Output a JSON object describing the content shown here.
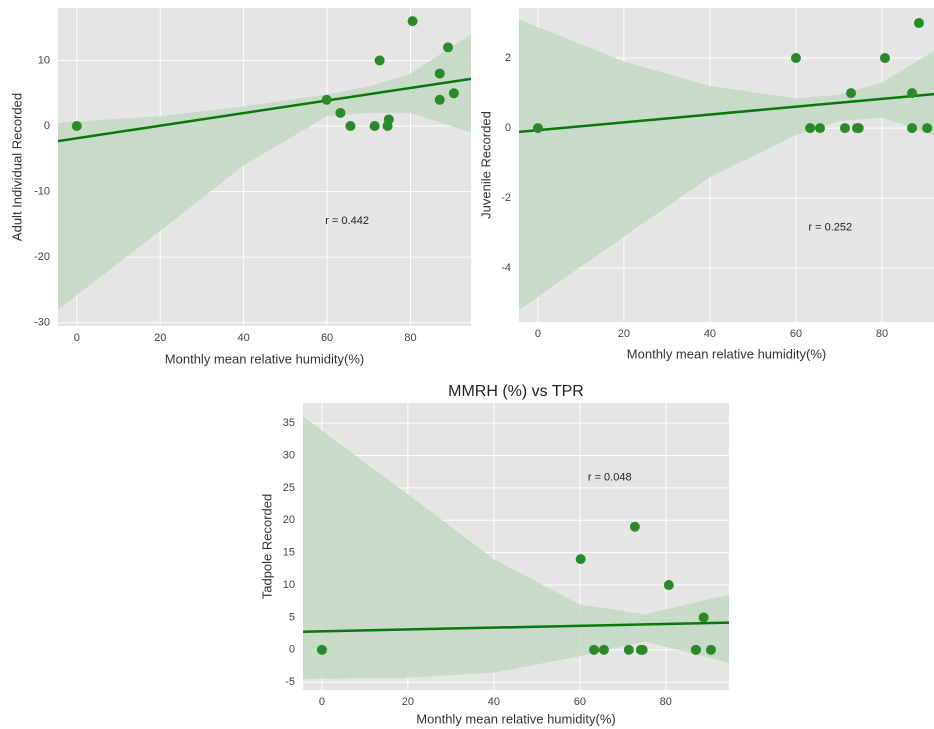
{
  "chart_data": [
    {
      "type": "scatter",
      "xlabel": "Monthly mean relative humidity(%)",
      "ylabel": "Adult Individual Recorded",
      "x": [
        0,
        59.9,
        63.2,
        65.6,
        71.4,
        72.6,
        74.5,
        74.8,
        80.5,
        87,
        87,
        89,
        90.4
      ],
      "values": [
        0,
        4,
        2,
        0,
        0,
        10,
        0,
        1,
        16,
        8,
        4,
        12,
        5
      ],
      "color": "#2a8a2a",
      "xlim": [
        -4.5,
        94.5
      ],
      "ylim": [
        -30.5,
        18
      ],
      "xticks": [
        0,
        20,
        40,
        60,
        80
      ],
      "yticks": [
        -30,
        -20,
        -10,
        0,
        10
      ],
      "grid": true,
      "fit": {
        "x": [
          -4.5,
          94.5
        ],
        "y": [
          -2.3,
          7.2
        ],
        "color": "#0a780a"
      },
      "ci_band": {
        "x": [
          -4.5,
          20,
          40,
          60,
          70,
          80,
          94.5
        ],
        "upper": [
          0.5,
          1.5,
          3,
          4.8,
          6,
          8,
          14
        ],
        "lower": [
          -28,
          -16,
          -6,
          1.5,
          2,
          2,
          -1
        ],
        "color": "#c3d8c3"
      },
      "annotation": "r = 0.442"
    },
    {
      "type": "scatter",
      "xlabel": "Monthly mean relative humidity(%)",
      "ylabel": "Juvenile Recorded",
      "x": [
        0,
        60,
        63.3,
        65.6,
        71.4,
        72.8,
        74.2,
        74.6,
        80.7,
        87,
        87,
        88.6,
        90.5
      ],
      "values": [
        0,
        2,
        0,
        0,
        0,
        1,
        0,
        0,
        2,
        1,
        0,
        3,
        0
      ],
      "color": "#2a8a2a",
      "xlim": [
        -4.4,
        92.1
      ],
      "ylim": [
        -5.54,
        3.43
      ],
      "xticks": [
        0,
        20,
        40,
        60,
        80
      ],
      "yticks": [
        -4,
        -2,
        0,
        2
      ],
      "grid": true,
      "fit": {
        "x": [
          -4.4,
          92.1
        ],
        "y": [
          -0.11,
          0.97
        ],
        "color": "#0a780a"
      },
      "ci_band": {
        "x": [
          -4.4,
          20,
          40,
          60,
          70,
          80,
          92.1
        ],
        "upper": [
          3.1,
          1.9,
          1.2,
          0.85,
          0.95,
          1.3,
          2.2
        ],
        "lower": [
          -5.2,
          -3.1,
          -1.4,
          -0.2,
          0.2,
          0.3,
          -0.2
        ],
        "color": "#c3d8c3"
      },
      "annotation": "r = 0.252"
    },
    {
      "type": "scatter",
      "title": "MMRH (%) vs TPR",
      "xlabel": "Monthly mean relative humidity(%)",
      "ylabel": "Tadpole Recorded",
      "x": [
        0,
        60.2,
        63.3,
        65.6,
        71.4,
        72.8,
        74.2,
        74.6,
        80.7,
        87,
        87,
        88.8,
        90.5
      ],
      "values": [
        0,
        14,
        0,
        0,
        0,
        19,
        0,
        0,
        10,
        0,
        0,
        5,
        0
      ],
      "color": "#2a8a2a",
      "xlim": [
        -4.4,
        94.7
      ],
      "ylim": [
        -6.2,
        38.1
      ],
      "xticks": [
        0,
        20,
        40,
        60,
        80
      ],
      "yticks": [
        -5,
        0,
        5,
        10,
        15,
        20,
        25,
        30,
        35
      ],
      "grid": true,
      "fit": {
        "x": [
          -4.4,
          94.7
        ],
        "y": [
          2.8,
          4.2
        ],
        "color": "#0a780a"
      },
      "ci_band": {
        "x": [
          -4.4,
          20,
          40,
          60,
          75,
          94.7
        ],
        "upper": [
          36,
          24,
          14,
          7,
          5.5,
          8.5
        ],
        "lower": [
          -4.5,
          -4.3,
          -3.5,
          -1,
          1.3,
          -2
        ],
        "color": "#c3d8c3"
      },
      "annotation": "r = 0.048"
    }
  ]
}
